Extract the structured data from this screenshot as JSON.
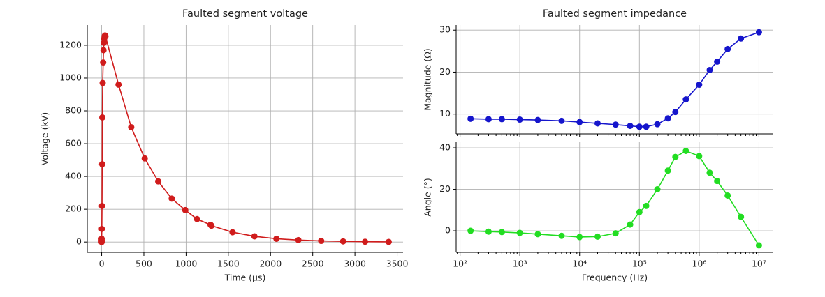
{
  "chart_data": [
    {
      "type": "line",
      "title": "Faulted segment voltage",
      "xlabel": "Time (µs)",
      "ylabel": "Voltage (kV)",
      "color": "#d01c1c",
      "x": [
        0,
        0,
        0,
        2,
        4,
        6,
        8,
        12,
        18,
        22,
        26,
        30,
        35,
        40,
        45,
        200,
        350,
        510,
        670,
        830,
        990,
        1130,
        1290,
        1300,
        1550,
        1810,
        2070,
        2330,
        2600,
        2860,
        3120,
        3400
      ],
      "values": [
        0,
        10,
        20,
        80,
        220,
        475,
        760,
        970,
        1095,
        1170,
        1215,
        1240,
        1255,
        1260,
        1255,
        960,
        700,
        510,
        370,
        265,
        195,
        140,
        105,
        100,
        60,
        35,
        20,
        12,
        7,
        4,
        2,
        1
      ],
      "xlim": [
        -170,
        3570
      ],
      "ylim": [
        -63,
        1323
      ],
      "xticks": [
        0,
        500,
        1000,
        1500,
        2000,
        2500,
        3000,
        3500
      ],
      "yticks": [
        0,
        200,
        400,
        600,
        800,
        1000,
        1200
      ],
      "grid": true
    },
    {
      "type": "line",
      "title": "Faulted segment impedance",
      "ylabel": "Magnitude (Ω)",
      "color": "#1515cc",
      "xscale": "log",
      "x": [
        150,
        300,
        500,
        1000,
        2000,
        5000,
        10000,
        20000,
        40000,
        70000,
        100000,
        130000,
        200000,
        300000,
        400000,
        600000,
        1000000,
        1500000,
        2000000,
        3000000,
        5000000,
        10000000
      ],
      "values": [
        8.9,
        8.8,
        8.8,
        8.7,
        8.6,
        8.4,
        8.1,
        7.8,
        7.5,
        7.2,
        7.0,
        7.0,
        7.6,
        9.0,
        10.5,
        13.5,
        17.0,
        20.5,
        22.5,
        25.5,
        28.0,
        29.5
      ],
      "xlim": [
        86,
        17400000
      ],
      "ylim": [
        5.3,
        31.2
      ],
      "yticks": [
        10,
        20,
        30
      ],
      "grid": true
    },
    {
      "type": "line",
      "xlabel": "Frequency (Hz)",
      "ylabel": "Angle (°)",
      "color": "#22dd22",
      "xscale": "log",
      "x": [
        150,
        300,
        500,
        1000,
        2000,
        5000,
        10000,
        20000,
        40000,
        70000,
        100000,
        130000,
        200000,
        300000,
        400000,
        600000,
        1000000,
        1500000,
        2000000,
        3000000,
        5000000,
        10000000
      ],
      "values": [
        0,
        -0.4,
        -0.6,
        -1,
        -1.6,
        -2.4,
        -3,
        -2.8,
        -1.2,
        3,
        9,
        12,
        20,
        29,
        35.6,
        38.5,
        36,
        28,
        24,
        17,
        6.7,
        -7
      ],
      "xlim": [
        86,
        17400000
      ],
      "ylim": [
        -10.4,
        42.7
      ],
      "xticks": [
        {
          "value": 100,
          "label": "10²"
        },
        {
          "value": 1000,
          "label": "10³"
        },
        {
          "value": 10000,
          "label": "10⁴"
        },
        {
          "value": 100000,
          "label": "10⁵"
        },
        {
          "value": 1000000,
          "label": "10⁶"
        },
        {
          "value": 10000000,
          "label": "10⁷"
        }
      ],
      "yticks": [
        0,
        20,
        40
      ],
      "grid": true
    }
  ]
}
